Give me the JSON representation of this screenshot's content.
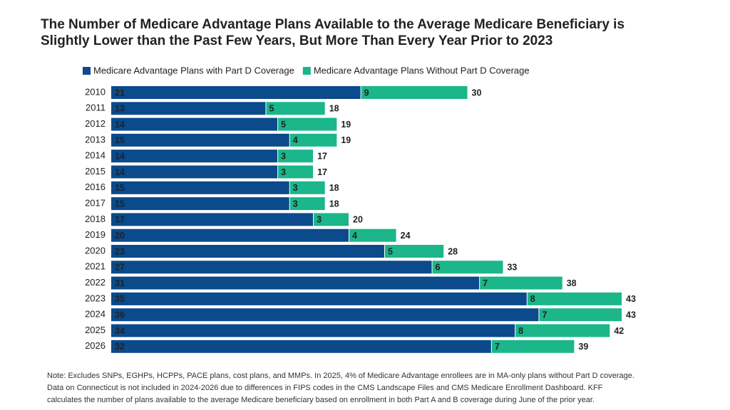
{
  "chart_data": {
    "type": "stacked-barh",
    "title": [
      "The Number of Medicare Advantage Plans Available to the Average Medicare Beneficiary is",
      "Slightly Lower than the Past Few Years, But More Than Every Year Prior to 2023"
    ],
    "categories": [
      "2010",
      "2011",
      "2012",
      "2013",
      "2014",
      "2015",
      "2016",
      "2017",
      "2018",
      "2019",
      "2020",
      "2021",
      "2022",
      "2023",
      "2024",
      "2025",
      "2026"
    ],
    "series": [
      {
        "name": "Medicare Advantage Plans with Part D Coverage",
        "color": "#0b4a8b",
        "values": [
          21,
          13,
          14,
          15,
          14,
          14,
          15,
          15,
          17,
          20,
          23,
          27,
          31,
          35,
          36,
          34,
          32
        ]
      },
      {
        "name": "Medicare Advantage Plans Without Part D Coverage",
        "color": "#1bb68a",
        "values": [
          9,
          5,
          5,
          4,
          3,
          3,
          3,
          3,
          3,
          4,
          5,
          6,
          7,
          8,
          7,
          8,
          7
        ]
      }
    ],
    "totals": [
      30,
      18,
      19,
      19,
      17,
      17,
      18,
      18,
      20,
      24,
      28,
      33,
      38,
      43,
      43,
      42,
      39
    ],
    "note": [
      "Note: Excludes SNPs, EGHPs, HCPPs, PACE plans, cost plans, and MMPs. In 2025, 4% of Medicare Advantage enrollees are in MA-only plans without Part D coverage.",
      "Data on Connecticut is not included in 2024-2026 due to differences in FIPS codes in the CMS Landscape Files and CMS Medicare Enrollment Dashboard. KFF",
      "calculates the number of plans available to the average Medicare beneficiary based on enrollment in both Part A and B coverage during June of the prior year."
    ]
  }
}
